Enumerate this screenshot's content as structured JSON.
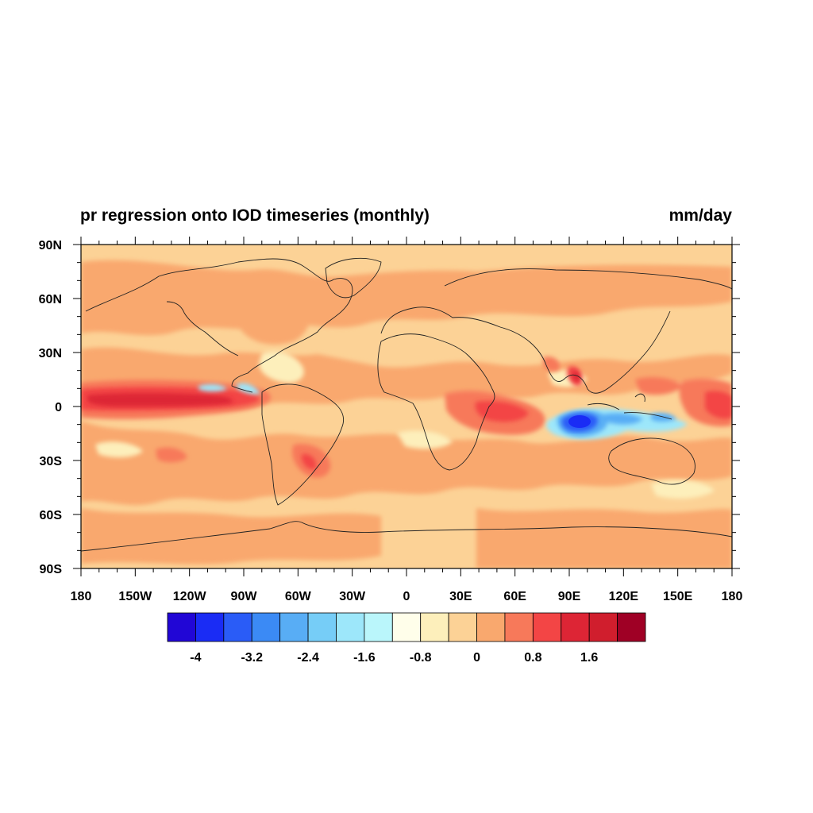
{
  "title": "pr regression onto IOD timeseries (monthly)",
  "units": "mm/day",
  "lat_labels": [
    "90N",
    "60N",
    "30N",
    "0",
    "30S",
    "60S",
    "90S"
  ],
  "lon_labels": [
    "180",
    "150W",
    "120W",
    "90W",
    "60W",
    "30W",
    "0",
    "30E",
    "60E",
    "90E",
    "120E",
    "150E",
    "180"
  ],
  "colorbar": {
    "colors": [
      "#2106d6",
      "#1a2cf5",
      "#2a5cf7",
      "#3b8af5",
      "#58adf5",
      "#76cdf7",
      "#9de7fa",
      "#baf6fb",
      "#fffeea",
      "#fdefbb",
      "#fcd296",
      "#f9a86e",
      "#f7795a",
      "#f34545",
      "#dd2535",
      "#d01e2d",
      "#9f0025"
    ],
    "labels": [
      "-4",
      "-3.2",
      "-2.4",
      "-1.6",
      "-0.8",
      "0",
      "0.8",
      "1.6"
    ]
  },
  "colors": {
    "background": "#fcd296",
    "mid_positive": "#f9a86e",
    "strong_positive": "#f7795a",
    "very_strong_positive": "#f34545",
    "near_zero": "#fdefbb",
    "strong_negative": "#1a2cf5",
    "negative": "#58adf5",
    "weak_negative": "#9de7fa",
    "coastline": "#222222"
  },
  "features": [
    {
      "name": "equatorial-pacific-wet-tongue",
      "sign": "positive",
      "level": "2+ mm/day"
    },
    {
      "name": "eastern-indian-ocean-dry-anomaly",
      "sign": "negative",
      "level": "below -4 mm/day"
    },
    {
      "name": "western-indian-ocean-wet-anomaly",
      "sign": "positive",
      "level": "1.6 mm/day"
    },
    {
      "name": "maritime-continent-dry-band",
      "sign": "negative",
      "level": "-0.8 to -1.6 mm/day"
    }
  ]
}
